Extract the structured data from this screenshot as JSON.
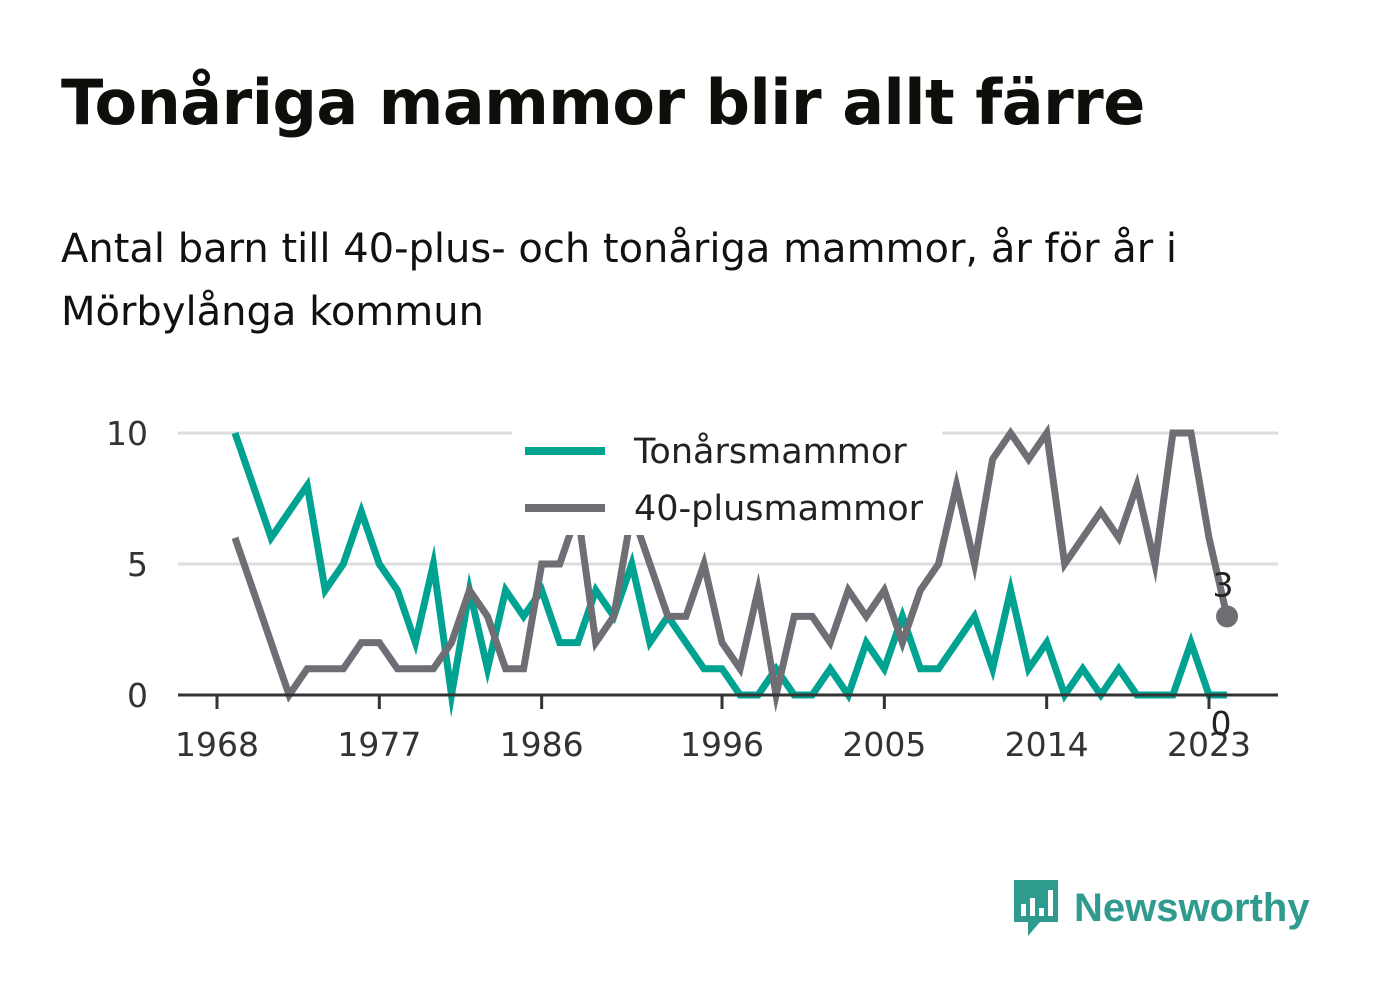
{
  "header": {
    "title": "Tonåriga mammor blir allt färre",
    "subtitle": "Antal barn till 40-plus- och tonåriga mammor, år för år i Mörbylånga kommun"
  },
  "brand": {
    "name": "Newsworthy",
    "color": "#2f9a8e"
  },
  "chart_data": {
    "type": "line",
    "x": [
      1969,
      1970,
      1971,
      1972,
      1973,
      1974,
      1975,
      1976,
      1977,
      1978,
      1979,
      1980,
      1981,
      1982,
      1983,
      1984,
      1985,
      1986,
      1987,
      1988,
      1989,
      1990,
      1991,
      1992,
      1993,
      1994,
      1995,
      1996,
      1997,
      1998,
      1999,
      2000,
      2001,
      2002,
      2003,
      2004,
      2005,
      2006,
      2007,
      2008,
      2009,
      2010,
      2011,
      2012,
      2013,
      2014,
      2015,
      2016,
      2017,
      2018,
      2019,
      2020,
      2021,
      2022,
      2023,
      2024
    ],
    "series": [
      {
        "name": "Tonårsmammor",
        "color": "#00a392",
        "values": [
          10,
          8,
          6,
          7,
          8,
          4,
          5,
          7,
          5,
          4,
          2,
          5,
          0,
          4,
          1,
          4,
          3,
          4,
          2,
          2,
          4,
          3,
          5,
          2,
          3,
          2,
          1,
          1,
          0,
          0,
          1,
          0,
          0,
          1,
          0,
          2,
          1,
          3,
          1,
          1,
          2,
          3,
          1,
          4,
          1,
          2,
          0,
          1,
          0,
          1,
          0,
          0,
          0,
          2,
          0,
          0
        ]
      },
      {
        "name": "40-plusmammor",
        "color": "#6f6e74",
        "values": [
          6,
          4,
          2,
          0,
          1,
          1,
          1,
          2,
          2,
          1,
          1,
          1,
          2,
          4,
          3,
          1,
          1,
          5,
          5,
          7,
          2,
          3,
          7,
          5,
          3,
          3,
          5,
          2,
          1,
          4,
          0,
          3,
          3,
          2,
          4,
          3,
          4,
          2,
          4,
          5,
          8,
          5,
          9,
          10,
          9,
          10,
          5,
          6,
          7,
          6,
          8,
          5,
          10,
          10,
          6,
          3
        ]
      }
    ],
    "end_labels": {
      "40-plusmammor": "3",
      "Tonårsmammor": "0"
    },
    "x_ticks": [
      "1968",
      "1977",
      "1986",
      "1996",
      "2005",
      "2014",
      "2023"
    ],
    "y_ticks": [
      "0",
      "5",
      "10"
    ],
    "xlim": [
      1968,
      2026
    ],
    "ylim": [
      0,
      10
    ],
    "grid": true,
    "legend_position": "top-center"
  }
}
